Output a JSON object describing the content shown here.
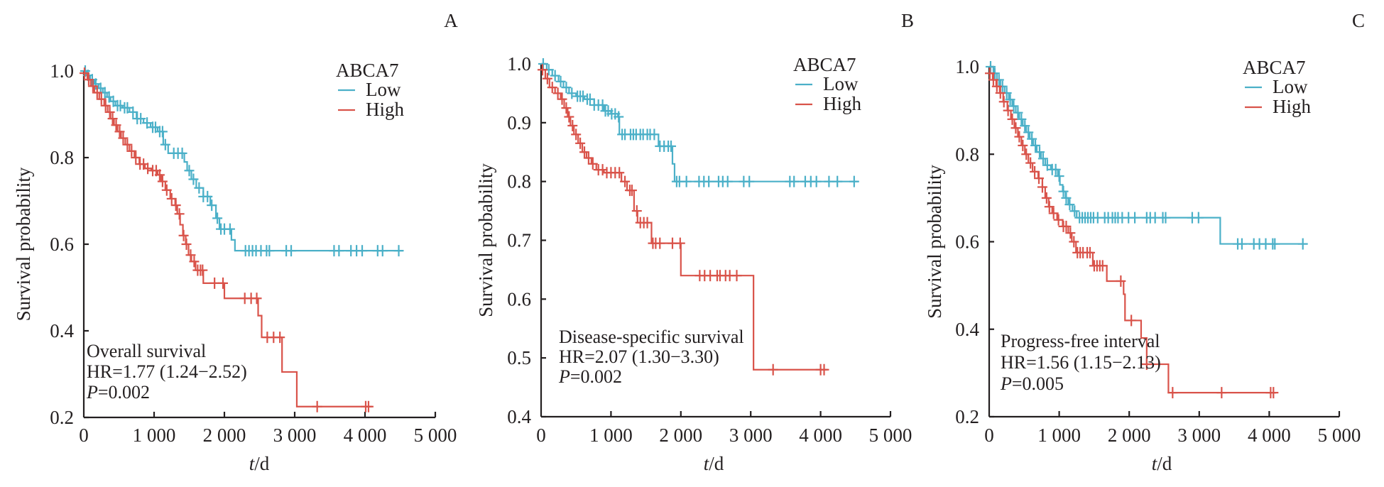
{
  "colors": {
    "low": "#4bb0c8",
    "high": "#d9534a",
    "axis": "#231f20"
  },
  "chart_data": [
    {
      "type": "line",
      "subtype": "kaplan-meier",
      "panel_label": "A",
      "title": "Overall survival",
      "stats": {
        "hr_text": "HR=1.77 (1.24−2.52)",
        "p_prefix": "P",
        "p_value": "=0.002"
      },
      "xlabel_italic": "t",
      "xlabel_rest": "/d",
      "ylabel": "Survival probability",
      "xlim": [
        0,
        5000
      ],
      "ylim": [
        0.2,
        1.0
      ],
      "xticks": [
        0,
        1000,
        2000,
        3000,
        4000,
        5000
      ],
      "xtick_labels": [
        "0",
        "1 000",
        "2 000",
        "3 000",
        "4 000",
        "5 000"
      ],
      "yticks": [
        0.2,
        0.4,
        0.6,
        0.8,
        1.0
      ],
      "ytick_labels": [
        "0.2",
        "0.4",
        "0.6",
        "0.8",
        "1.0"
      ],
      "legend": {
        "title": "ABCA7",
        "position": "top-right"
      },
      "series": [
        {
          "name": "Low",
          "steps": [
            [
              0,
              1.0
            ],
            [
              40,
              0.99
            ],
            [
              90,
              0.98
            ],
            [
              150,
              0.97
            ],
            [
              210,
              0.96
            ],
            [
              270,
              0.95
            ],
            [
              330,
              0.94
            ],
            [
              380,
              0.93
            ],
            [
              450,
              0.92
            ],
            [
              550,
              0.915
            ],
            [
              650,
              0.905
            ],
            [
              750,
              0.89
            ],
            [
              850,
              0.88
            ],
            [
              950,
              0.87
            ],
            [
              1050,
              0.86
            ],
            [
              1130,
              0.83
            ],
            [
              1200,
              0.81
            ],
            [
              1430,
              0.79
            ],
            [
              1470,
              0.77
            ],
            [
              1530,
              0.75
            ],
            [
              1600,
              0.73
            ],
            [
              1700,
              0.71
            ],
            [
              1800,
              0.69
            ],
            [
              1880,
              0.66
            ],
            [
              1930,
              0.635
            ],
            [
              2100,
              0.61
            ],
            [
              2150,
              0.585
            ]
          ],
          "censor": [
            20,
            60,
            120,
            170,
            240,
            300,
            360,
            420,
            480,
            520,
            580,
            620,
            700,
            760,
            810,
            900,
            980,
            1020,
            1080,
            1120,
            1160,
            1280,
            1340,
            1400,
            1500,
            1560,
            1640,
            1700,
            1760,
            1820,
            1900,
            1950,
            2000,
            2080,
            2300,
            2350,
            2400,
            2450,
            2520,
            2600,
            2640,
            2880,
            2950,
            3560,
            3630,
            3800,
            3880,
            3960,
            4180,
            4250,
            4480
          ],
          "end": 4540
        },
        {
          "name": "High",
          "steps": [
            [
              0,
              0.995
            ],
            [
              50,
              0.98
            ],
            [
              100,
              0.965
            ],
            [
              150,
              0.95
            ],
            [
              220,
              0.935
            ],
            [
              290,
              0.92
            ],
            [
              340,
              0.905
            ],
            [
              380,
              0.89
            ],
            [
              430,
              0.875
            ],
            [
              480,
              0.86
            ],
            [
              530,
              0.845
            ],
            [
              590,
              0.83
            ],
            [
              650,
              0.815
            ],
            [
              720,
              0.8
            ],
            [
              790,
              0.785
            ],
            [
              870,
              0.775
            ],
            [
              960,
              0.77
            ],
            [
              1050,
              0.76
            ],
            [
              1100,
              0.745
            ],
            [
              1160,
              0.725
            ],
            [
              1230,
              0.705
            ],
            [
              1300,
              0.69
            ],
            [
              1330,
              0.67
            ],
            [
              1370,
              0.645
            ],
            [
              1410,
              0.62
            ],
            [
              1450,
              0.6
            ],
            [
              1490,
              0.575
            ],
            [
              1530,
              0.56
            ],
            [
              1590,
              0.54
            ],
            [
              1700,
              0.51
            ],
            [
              2000,
              0.475
            ],
            [
              2480,
              0.435
            ],
            [
              2530,
              0.385
            ],
            [
              2820,
              0.305
            ],
            [
              3030,
              0.225
            ]
          ],
          "censor": [
            10,
            70,
            130,
            190,
            250,
            310,
            370,
            410,
            460,
            510,
            560,
            620,
            680,
            740,
            800,
            850,
            910,
            980,
            1030,
            1080,
            1120,
            1180,
            1250,
            1310,
            1360,
            1420,
            1460,
            1520,
            1570,
            1620,
            1660,
            1690,
            1860,
            1980,
            2290,
            2380,
            2460,
            2610,
            2700,
            2790,
            3320,
            4010,
            4050
          ],
          "end": 4100
        }
      ]
    },
    {
      "type": "line",
      "subtype": "kaplan-meier",
      "panel_label": "B",
      "title": "Disease-specific survival",
      "stats": {
        "hr_text": "HR=2.07 (1.30−3.30)",
        "p_prefix": "P",
        "p_value": "=0.002"
      },
      "xlabel_italic": "t",
      "xlabel_rest": "/d",
      "ylabel": "Survival probability",
      "xlim": [
        0,
        5000
      ],
      "ylim": [
        0.4,
        1.0
      ],
      "xticks": [
        0,
        1000,
        2000,
        3000,
        4000,
        5000
      ],
      "xtick_labels": [
        "0",
        "1 000",
        "2 000",
        "3 000",
        "4 000",
        "5 000"
      ],
      "yticks": [
        0.4,
        0.5,
        0.6,
        0.7,
        0.8,
        0.9,
        1.0
      ],
      "ytick_labels": [
        "0.4",
        "0.5",
        "0.6",
        "0.7",
        "0.8",
        "0.9",
        "1.0"
      ],
      "legend": {
        "title": "ABCA7",
        "position": "top-right"
      },
      "series": [
        {
          "name": "Low",
          "steps": [
            [
              0,
              1.0
            ],
            [
              80,
              0.99
            ],
            [
              160,
              0.98
            ],
            [
              250,
              0.97
            ],
            [
              320,
              0.96
            ],
            [
              400,
              0.95
            ],
            [
              500,
              0.945
            ],
            [
              620,
              0.94
            ],
            [
              760,
              0.93
            ],
            [
              900,
              0.92
            ],
            [
              1000,
              0.915
            ],
            [
              1100,
              0.91
            ],
            [
              1120,
              0.88
            ],
            [
              1680,
              0.86
            ],
            [
              1880,
              0.83
            ],
            [
              1910,
              0.8
            ]
          ],
          "censor": [
            30,
            110,
            200,
            280,
            360,
            440,
            520,
            560,
            600,
            660,
            700,
            760,
            820,
            880,
            920,
            960,
            1010,
            1060,
            1110,
            1160,
            1200,
            1280,
            1320,
            1360,
            1420,
            1460,
            1520,
            1560,
            1620,
            1700,
            1760,
            1820,
            1860,
            1940,
            1980,
            2080,
            2260,
            2330,
            2400,
            2540,
            2600,
            2670,
            2900,
            2980,
            3560,
            3620,
            3780,
            3860,
            3940,
            4120,
            4240,
            4480
          ],
          "end": 4540
        },
        {
          "name": "High",
          "steps": [
            [
              0,
              0.99
            ],
            [
              60,
              0.975
            ],
            [
              120,
              0.96
            ],
            [
              200,
              0.95
            ],
            [
              280,
              0.94
            ],
            [
              330,
              0.925
            ],
            [
              380,
              0.91
            ],
            [
              420,
              0.895
            ],
            [
              470,
              0.88
            ],
            [
              530,
              0.865
            ],
            [
              590,
              0.85
            ],
            [
              650,
              0.84
            ],
            [
              720,
              0.83
            ],
            [
              790,
              0.82
            ],
            [
              900,
              0.815
            ],
            [
              1150,
              0.8
            ],
            [
              1230,
              0.785
            ],
            [
              1330,
              0.75
            ],
            [
              1380,
              0.73
            ],
            [
              1580,
              0.695
            ],
            [
              2000,
              0.64
            ],
            [
              3040,
              0.48
            ]
          ],
          "censor": [
            20,
            90,
            160,
            240,
            300,
            360,
            400,
            450,
            500,
            560,
            620,
            680,
            740,
            820,
            880,
            940,
            1000,
            1060,
            1120,
            1200,
            1270,
            1300,
            1370,
            1420,
            1470,
            1520,
            1600,
            1640,
            1700,
            1880,
            1990,
            2270,
            2340,
            2420,
            2520,
            2560,
            2640,
            2700,
            2800,
            3320,
            4000,
            4050
          ],
          "end": 4100
        }
      ]
    },
    {
      "type": "line",
      "subtype": "kaplan-meier",
      "panel_label": "C",
      "title": "Progress-free interval",
      "stats": {
        "hr_text": "HR=1.56 (1.15−2.13)",
        "p_prefix": "P",
        "p_value": "=0.005"
      },
      "xlabel_italic": "t",
      "xlabel_rest": "/d",
      "ylabel": "Survival probability",
      "xlim": [
        0,
        5000
      ],
      "ylim": [
        0.2,
        1.0
      ],
      "xticks": [
        0,
        1000,
        2000,
        3000,
        4000,
        5000
      ],
      "xtick_labels": [
        "0",
        "1 000",
        "2 000",
        "3 000",
        "4 000",
        "5 000"
      ],
      "yticks": [
        0.2,
        0.4,
        0.6,
        0.8,
        1.0
      ],
      "ytick_labels": [
        "0.2",
        "0.4",
        "0.6",
        "0.8",
        "1.0"
      ],
      "legend": {
        "title": "ABCA7",
        "position": "top-right"
      },
      "series": [
        {
          "name": "Low",
          "steps": [
            [
              0,
              1.0
            ],
            [
              60,
              0.985
            ],
            [
              110,
              0.97
            ],
            [
              160,
              0.955
            ],
            [
              220,
              0.94
            ],
            [
              280,
              0.925
            ],
            [
              330,
              0.91
            ],
            [
              380,
              0.895
            ],
            [
              430,
              0.88
            ],
            [
              480,
              0.865
            ],
            [
              530,
              0.85
            ],
            [
              580,
              0.835
            ],
            [
              630,
              0.82
            ],
            [
              680,
              0.805
            ],
            [
              740,
              0.79
            ],
            [
              800,
              0.775
            ],
            [
              880,
              0.765
            ],
            [
              980,
              0.75
            ],
            [
              1010,
              0.73
            ],
            [
              1050,
              0.715
            ],
            [
              1090,
              0.7
            ],
            [
              1130,
              0.685
            ],
            [
              1190,
              0.67
            ],
            [
              1250,
              0.655
            ],
            [
              3300,
              0.595
            ]
          ],
          "censor": [
            20,
            80,
            140,
            190,
            250,
            300,
            350,
            410,
            460,
            510,
            560,
            610,
            660,
            720,
            770,
            830,
            900,
            950,
            1000,
            1060,
            1100,
            1150,
            1220,
            1290,
            1330,
            1370,
            1410,
            1450,
            1490,
            1550,
            1650,
            1700,
            1760,
            1800,
            1840,
            1900,
            1990,
            2080,
            2250,
            2300,
            2370,
            2480,
            2520,
            2900,
            2990,
            3550,
            3610,
            3780,
            3860,
            3950,
            4050,
            4080,
            4480
          ],
          "end": 4540
        },
        {
          "name": "High",
          "steps": [
            [
              0,
              0.985
            ],
            [
              50,
              0.97
            ],
            [
              100,
              0.955
            ],
            [
              150,
              0.94
            ],
            [
              200,
              0.92
            ],
            [
              260,
              0.9
            ],
            [
              310,
              0.88
            ],
            [
              360,
              0.86
            ],
            [
              410,
              0.84
            ],
            [
              460,
              0.82
            ],
            [
              510,
              0.8
            ],
            [
              560,
              0.78
            ],
            [
              620,
              0.76
            ],
            [
              700,
              0.745
            ],
            [
              760,
              0.725
            ],
            [
              800,
              0.7
            ],
            [
              850,
              0.68
            ],
            [
              900,
              0.665
            ],
            [
              970,
              0.65
            ],
            [
              1050,
              0.635
            ],
            [
              1130,
              0.62
            ],
            [
              1180,
              0.6
            ],
            [
              1240,
              0.575
            ],
            [
              1480,
              0.545
            ],
            [
              1680,
              0.51
            ],
            [
              1920,
              0.48
            ],
            [
              1940,
              0.42
            ],
            [
              2170,
              0.38
            ],
            [
              2250,
              0.32
            ],
            [
              2560,
              0.255
            ]
          ],
          "censor": [
            10,
            60,
            110,
            160,
            210,
            270,
            330,
            380,
            430,
            480,
            530,
            590,
            650,
            710,
            760,
            820,
            860,
            920,
            990,
            1060,
            1100,
            1160,
            1210,
            1260,
            1300,
            1340,
            1400,
            1440,
            1500,
            1540,
            1580,
            1620,
            1880,
            2030,
            2250,
            2620,
            3320,
            4020,
            4060
          ],
          "end": 4100
        }
      ]
    }
  ]
}
